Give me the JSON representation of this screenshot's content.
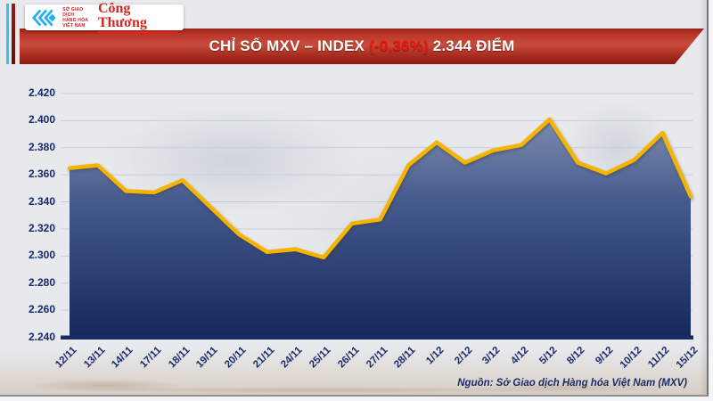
{
  "header": {
    "logo": {
      "org_lines": [
        "SỞ GIAO DỊCH",
        "HÀNG HÓA",
        "VIỆT NAM"
      ],
      "brand": "Công Thương"
    },
    "banner": {
      "title_prefix": "CHỈ SỐ MXV – INDEX ",
      "change": "(-0,36%)",
      "title_suffix": " 2.344 ĐIỂM"
    }
  },
  "footer": {
    "source": "Nguồn: Sở Giao dịch Hàng hóa Việt Nam (MXV)"
  },
  "colors": {
    "banner_red": "#c0392b",
    "change_red": "#ee1509",
    "navy_text": "#1c2b66",
    "line_yellow": "#f5b400",
    "area_top": "#8e9cba",
    "area_mid": "#44598c",
    "area_bottom": "#15285a",
    "gridline": "#c3cbdb",
    "axis_navy": "#1b2a60",
    "logo_cyan": "#2bb1e6",
    "logo_red": "#c1272d"
  },
  "chart_data": {
    "type": "area",
    "title": "Chỉ số MXV – INDEX",
    "categories": [
      "12/11",
      "13/11",
      "14/11",
      "17/11",
      "18/11",
      "19/11",
      "20/11",
      "21/11",
      "24/11",
      "25/11",
      "26/11",
      "27/11",
      "28/11",
      "1/12",
      "2/12",
      "3/12",
      "4/12",
      "5/12",
      "8/12",
      "9/12",
      "10/12",
      "11/12",
      "15/12"
    ],
    "values": [
      2365,
      2367,
      2348,
      2347,
      2356,
      2336,
      2316,
      2303,
      2305,
      2299,
      2324,
      2327,
      2367,
      2384,
      2369,
      2378,
      2382,
      2401,
      2369,
      2361,
      2371,
      2391,
      2344
    ],
    "ylim": [
      2240,
      2420
    ],
    "ytick_step": 20,
    "ytick_labels": [
      "2.420",
      "2.400",
      "2.380",
      "2.360",
      "2.340",
      "2.320",
      "2.300",
      "2.280",
      "2.260",
      "2.240"
    ],
    "grid": "horizontal",
    "legend": "none",
    "xlabel": "",
    "ylabel": ""
  }
}
